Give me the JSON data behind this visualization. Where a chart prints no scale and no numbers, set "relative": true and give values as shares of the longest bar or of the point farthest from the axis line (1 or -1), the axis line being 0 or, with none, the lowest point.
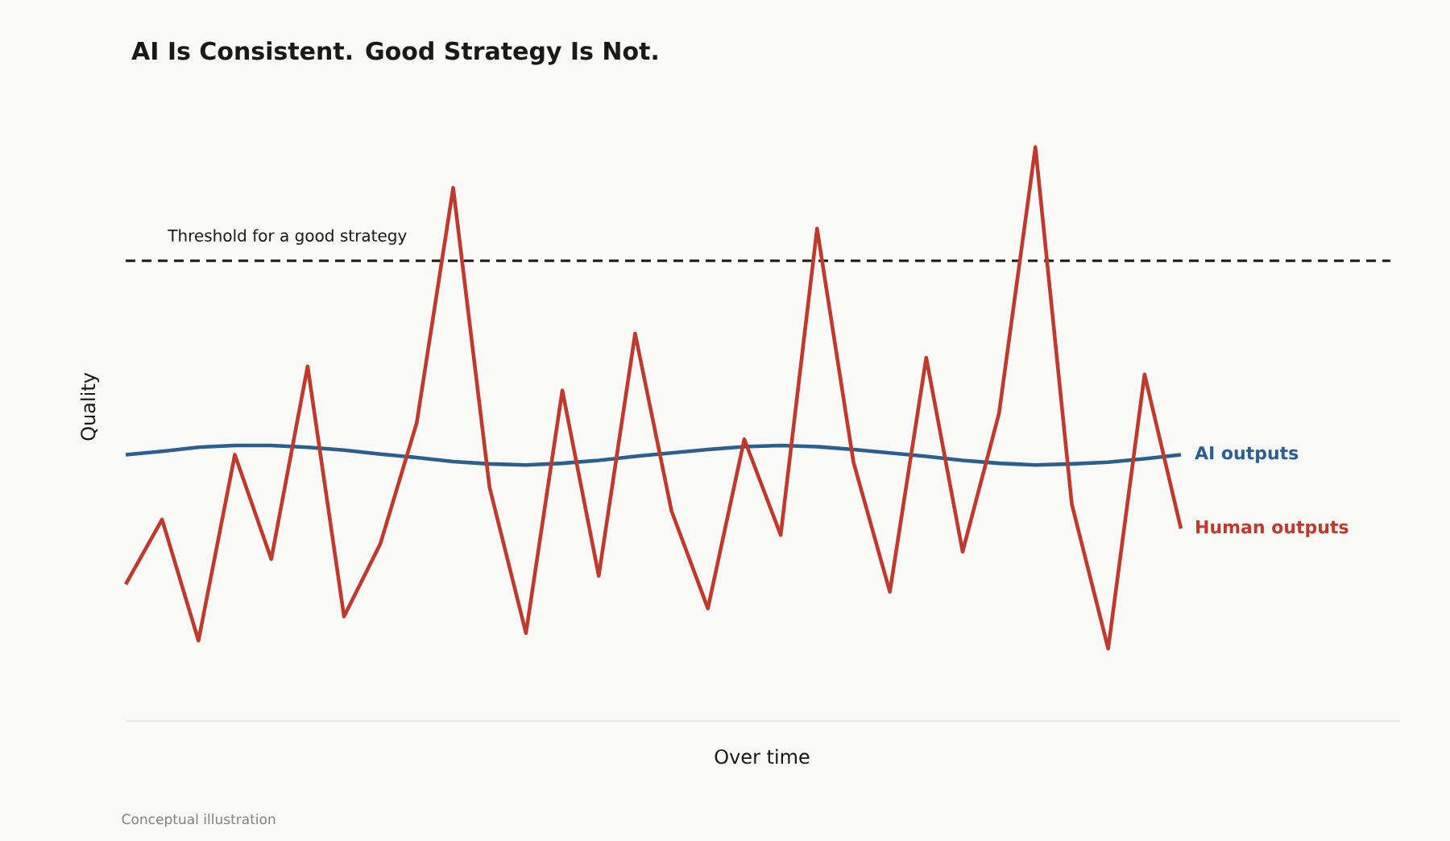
{
  "chart_data": {
    "type": "line",
    "relative": true,
    "title": "AI Is Consistent. Good Strategy Is Not.",
    "xlabel": "Over time",
    "ylabel": "Quality",
    "categories": [
      null,
      null,
      null,
      null,
      null,
      null,
      null,
      null,
      null,
      null,
      null,
      null,
      null,
      null,
      null,
      null,
      null,
      null,
      null,
      null,
      null,
      null,
      null,
      null,
      null,
      null,
      null,
      null,
      null,
      null
    ],
    "series": [
      {
        "name": "AI outputs",
        "color": "#2a5f8f",
        "values": [
          0.464,
          0.47,
          0.477,
          0.48,
          0.48,
          0.477,
          0.472,
          0.465,
          0.459,
          0.452,
          0.448,
          0.446,
          0.449,
          0.454,
          0.461,
          0.467,
          0.473,
          0.478,
          0.48,
          0.478,
          0.473,
          0.467,
          0.461,
          0.454,
          0.449,
          0.446,
          0.448,
          0.451,
          0.457,
          0.464
        ]
      },
      {
        "name": "Human outputs",
        "color": "#c0392b",
        "values": [
          0.238,
          0.351,
          0.14,
          0.464,
          0.282,
          0.618,
          0.182,
          0.309,
          0.52,
          0.929,
          0.407,
          0.153,
          0.576,
          0.253,
          0.675,
          0.366,
          0.196,
          0.491,
          0.324,
          0.858,
          0.451,
          0.225,
          0.633,
          0.295,
          0.536,
          1.0,
          0.378,
          0.126,
          0.604,
          0.335
        ]
      }
    ],
    "ref_lines": [
      {
        "axis": "y",
        "value": 0.802,
        "label": "Threshold for a good strategy",
        "color": "#1a1a1a",
        "line_style": "dashed"
      }
    ],
    "annotations": [
      "Conceptual illustration"
    ]
  }
}
